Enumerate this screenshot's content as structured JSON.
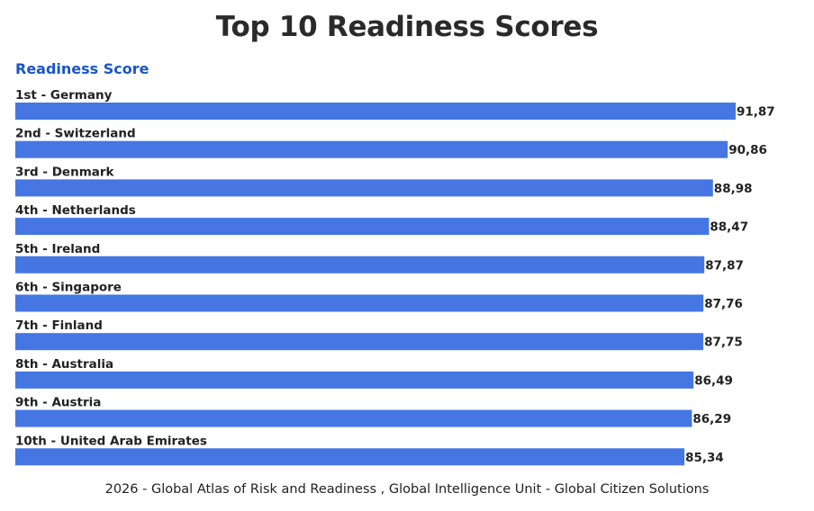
{
  "title": "Top 10 Readiness Scores",
  "source": "2026 - Global Atlas of Risk and Readiness , Global Intelligence Unit - Global Citizen Solutions",
  "colors": {
    "bar": "#4576e2",
    "series_label": "#1a55c8"
  },
  "chart_data": {
    "type": "bar",
    "orientation": "horizontal",
    "series": [
      {
        "name": "Readiness Score",
        "values": [
          91.87,
          90.86,
          88.98,
          88.47,
          87.87,
          87.76,
          87.75,
          86.49,
          86.29,
          85.34
        ]
      }
    ],
    "categories": [
      "1st - Germany",
      "2nd - Switzerland",
      "3rd - Denmark",
      "4th - Netherlands",
      "5th - Ireland",
      "6th - Singapore",
      "7th - Finland",
      "8th - Australia",
      "9th - Austria",
      "10th - United Arab Emirates"
    ],
    "value_labels": [
      "91,87",
      "90,86",
      "88,98",
      "88,47",
      "87,87",
      "87,76",
      "87,75",
      "86,49",
      "86,29",
      "85,34"
    ],
    "xlim": [
      0,
      91.87
    ],
    "grid": false,
    "legend": "top-left"
  }
}
